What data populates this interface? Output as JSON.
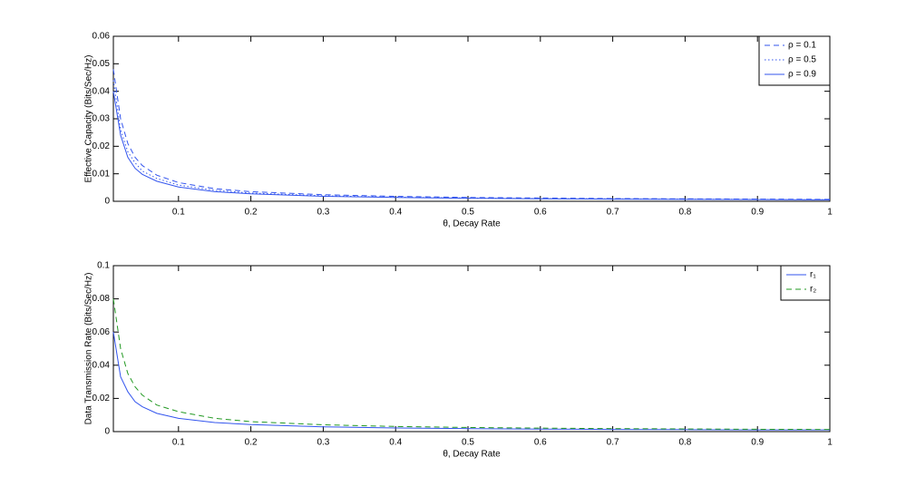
{
  "chart_data": [
    {
      "type": "line",
      "xlabel": "θ, Decay Rate",
      "ylabel": "Effective Capacity (Bits/Sec/Hz)",
      "x": [
        0.01,
        0.02,
        0.03,
        0.04,
        0.05,
        0.07,
        0.1,
        0.15,
        0.2,
        0.3,
        0.4,
        0.5,
        0.6,
        0.7,
        0.8,
        0.9,
        1
      ],
      "series": [
        {
          "name": "ρ = 0.1",
          "color": "#3355ee",
          "dash": "dashed",
          "values": [
            0.048,
            0.03,
            0.021,
            0.016,
            0.013,
            0.0095,
            0.0068,
            0.0046,
            0.0035,
            0.0024,
            0.0018,
            0.0014,
            0.0012,
            0.001,
            0.0009,
            0.0008,
            0.0007
          ]
        },
        {
          "name": "ρ = 0.5",
          "color": "#3355ee",
          "dash": "dotted",
          "values": [
            0.044,
            0.026,
            0.018,
            0.014,
            0.011,
            0.0083,
            0.0059,
            0.004,
            0.003,
            0.002,
            0.0015,
            0.0012,
            0.001,
            0.0009,
            0.0008,
            0.0007,
            0.0006
          ]
        },
        {
          "name": "ρ = 0.9",
          "color": "#3355ee",
          "dash": "solid",
          "values": [
            0.04,
            0.024,
            0.016,
            0.012,
            0.0098,
            0.0073,
            0.0052,
            0.0035,
            0.0027,
            0.0018,
            0.0014,
            0.0011,
            0.0009,
            0.0008,
            0.0007,
            0.0006,
            0.0005
          ]
        }
      ],
      "xlim": [
        0.01,
        1
      ],
      "xticks": [
        0.1,
        0.2,
        0.3,
        0.4,
        0.5,
        0.6,
        0.7,
        0.8,
        0.9,
        1
      ],
      "ylim": [
        0,
        0.06
      ],
      "yticks": [
        0,
        0.01,
        0.02,
        0.03,
        0.04,
        0.05,
        0.06
      ],
      "legend": "upper right"
    },
    {
      "type": "line",
      "xlabel": "θ, Decay Rate",
      "ylabel": "Data Transmission Rate (Bits/Sec/Hz)",
      "x": [
        0.01,
        0.02,
        0.03,
        0.04,
        0.05,
        0.07,
        0.1,
        0.15,
        0.2,
        0.3,
        0.4,
        0.5,
        0.6,
        0.7,
        0.8,
        0.9,
        1
      ],
      "series": [
        {
          "name": "r₁",
          "color": "#3355ee",
          "dash": "solid",
          "values": [
            0.06,
            0.033,
            0.024,
            0.018,
            0.015,
            0.011,
            0.008,
            0.0055,
            0.0042,
            0.0029,
            0.0022,
            0.0018,
            0.0015,
            0.0013,
            0.0012,
            0.001,
            0.001
          ]
        },
        {
          "name": "r₂",
          "color": "#229922",
          "dash": "dashed",
          "values": [
            0.08,
            0.05,
            0.035,
            0.027,
            0.022,
            0.016,
            0.012,
            0.008,
            0.006,
            0.0041,
            0.0031,
            0.0025,
            0.0021,
            0.0018,
            0.0016,
            0.0014,
            0.0013
          ]
        }
      ],
      "xlim": [
        0.01,
        1
      ],
      "xticks": [
        0.1,
        0.2,
        0.3,
        0.4,
        0.5,
        0.6,
        0.7,
        0.8,
        0.9,
        1
      ],
      "ylim": [
        0,
        0.1
      ],
      "yticks": [
        0,
        0.02,
        0.04,
        0.06,
        0.08,
        0.1
      ],
      "legend": "upper right"
    }
  ]
}
